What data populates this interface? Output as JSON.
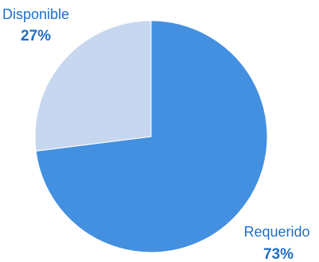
{
  "chart_data": {
    "type": "pie",
    "title": "",
    "start_angle": "12 o'clock",
    "direction": "clockwise",
    "slices": [
      {
        "label": "Requerido",
        "value": 73,
        "value_label": "73%",
        "color": "#4390E1"
      },
      {
        "label": "Disponible",
        "value": 27,
        "value_label": "27%",
        "color": "#C8D7F0"
      }
    ],
    "label_color": "#1F6EC6"
  }
}
